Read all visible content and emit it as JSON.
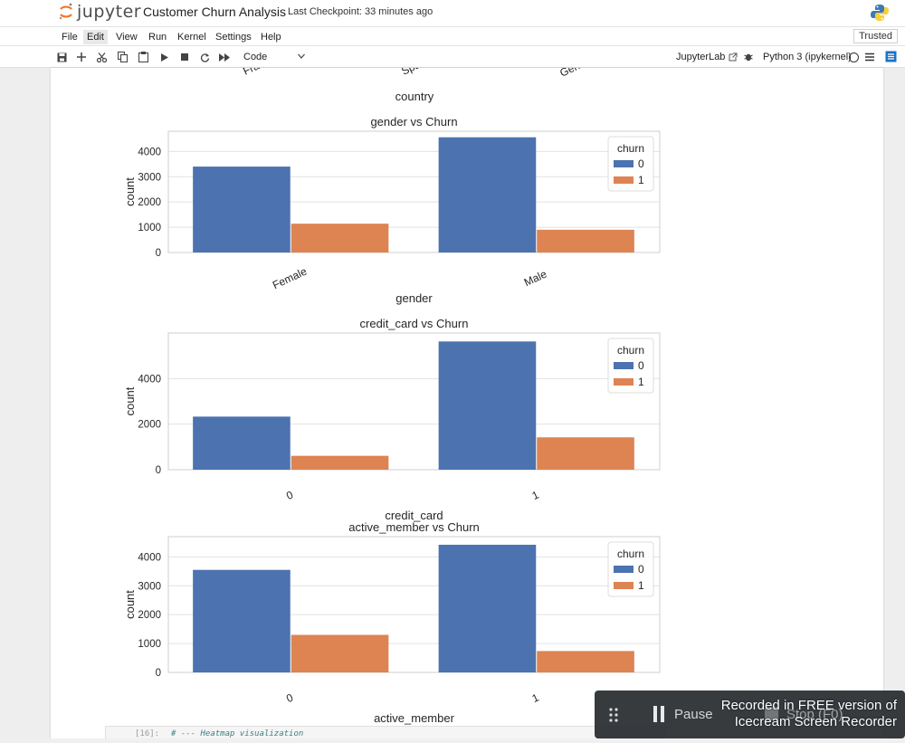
{
  "header": {
    "logo_text": "jupyter",
    "notebook_title": "Customer Churn Analysis",
    "checkpoint": "Last Checkpoint: 33 minutes ago"
  },
  "menu": {
    "items": [
      "File",
      "Edit",
      "View",
      "Run",
      "Kernel",
      "Settings",
      "Help"
    ],
    "trusted": "Trusted"
  },
  "toolbar": {
    "cell_type": "Code",
    "jupyterlab_link": "JupyterLab",
    "kernel": "Python 3 (ipykernel)"
  },
  "output": {
    "previous_chart_xlabel": "country",
    "previous_chart_ticks": [
      "France",
      "Spain",
      "Germany"
    ]
  },
  "chart_data": [
    {
      "type": "bar",
      "title": "gender vs Churn",
      "xlabel": "gender",
      "ylabel": "count",
      "categories": [
        "Female",
        "Male"
      ],
      "series": [
        {
          "name": "0",
          "values": [
            3400,
            4560
          ]
        },
        {
          "name": "1",
          "values": [
            1140,
            900
          ]
        }
      ],
      "yticks": [
        0,
        1000,
        2000,
        3000,
        4000
      ],
      "ylim": [
        0,
        4800
      ],
      "legend_title": "churn",
      "legend_position": "top-right",
      "colors": [
        "#4c72b0",
        "#dd8452"
      ],
      "grid": true
    },
    {
      "type": "bar",
      "title": "credit_card vs Churn",
      "xlabel": "credit_card",
      "ylabel": "count",
      "categories": [
        "0",
        "1"
      ],
      "series": [
        {
          "name": "0",
          "values": [
            2330,
            5630
          ]
        },
        {
          "name": "1",
          "values": [
            610,
            1420
          ]
        }
      ],
      "yticks": [
        0,
        2000,
        4000
      ],
      "ylim": [
        0,
        6000
      ],
      "legend_title": "churn",
      "legend_position": "top-right",
      "colors": [
        "#4c72b0",
        "#dd8452"
      ],
      "grid": true
    },
    {
      "type": "bar",
      "title": "active_member vs Churn",
      "xlabel": "active_member",
      "ylabel": "count",
      "categories": [
        "0",
        "1"
      ],
      "series": [
        {
          "name": "0",
          "values": [
            3550,
            4420
          ]
        },
        {
          "name": "1",
          "values": [
            1300,
            740
          ]
        }
      ],
      "yticks": [
        0,
        1000,
        2000,
        3000,
        4000
      ],
      "ylim": [
        0,
        4700
      ],
      "legend_title": "churn",
      "legend_position": "top-right",
      "colors": [
        "#4c72b0",
        "#dd8452"
      ],
      "grid": true
    }
  ],
  "next_cell": {
    "prompt": "[16]:",
    "code": "# --- Heatmap visualization"
  },
  "recorder": {
    "pause_label": "Pause",
    "stop_label": "Stop (F0)",
    "banner_line1": "Recorded in FREE version of",
    "banner_line2": "Icecream Screen Recorder"
  }
}
